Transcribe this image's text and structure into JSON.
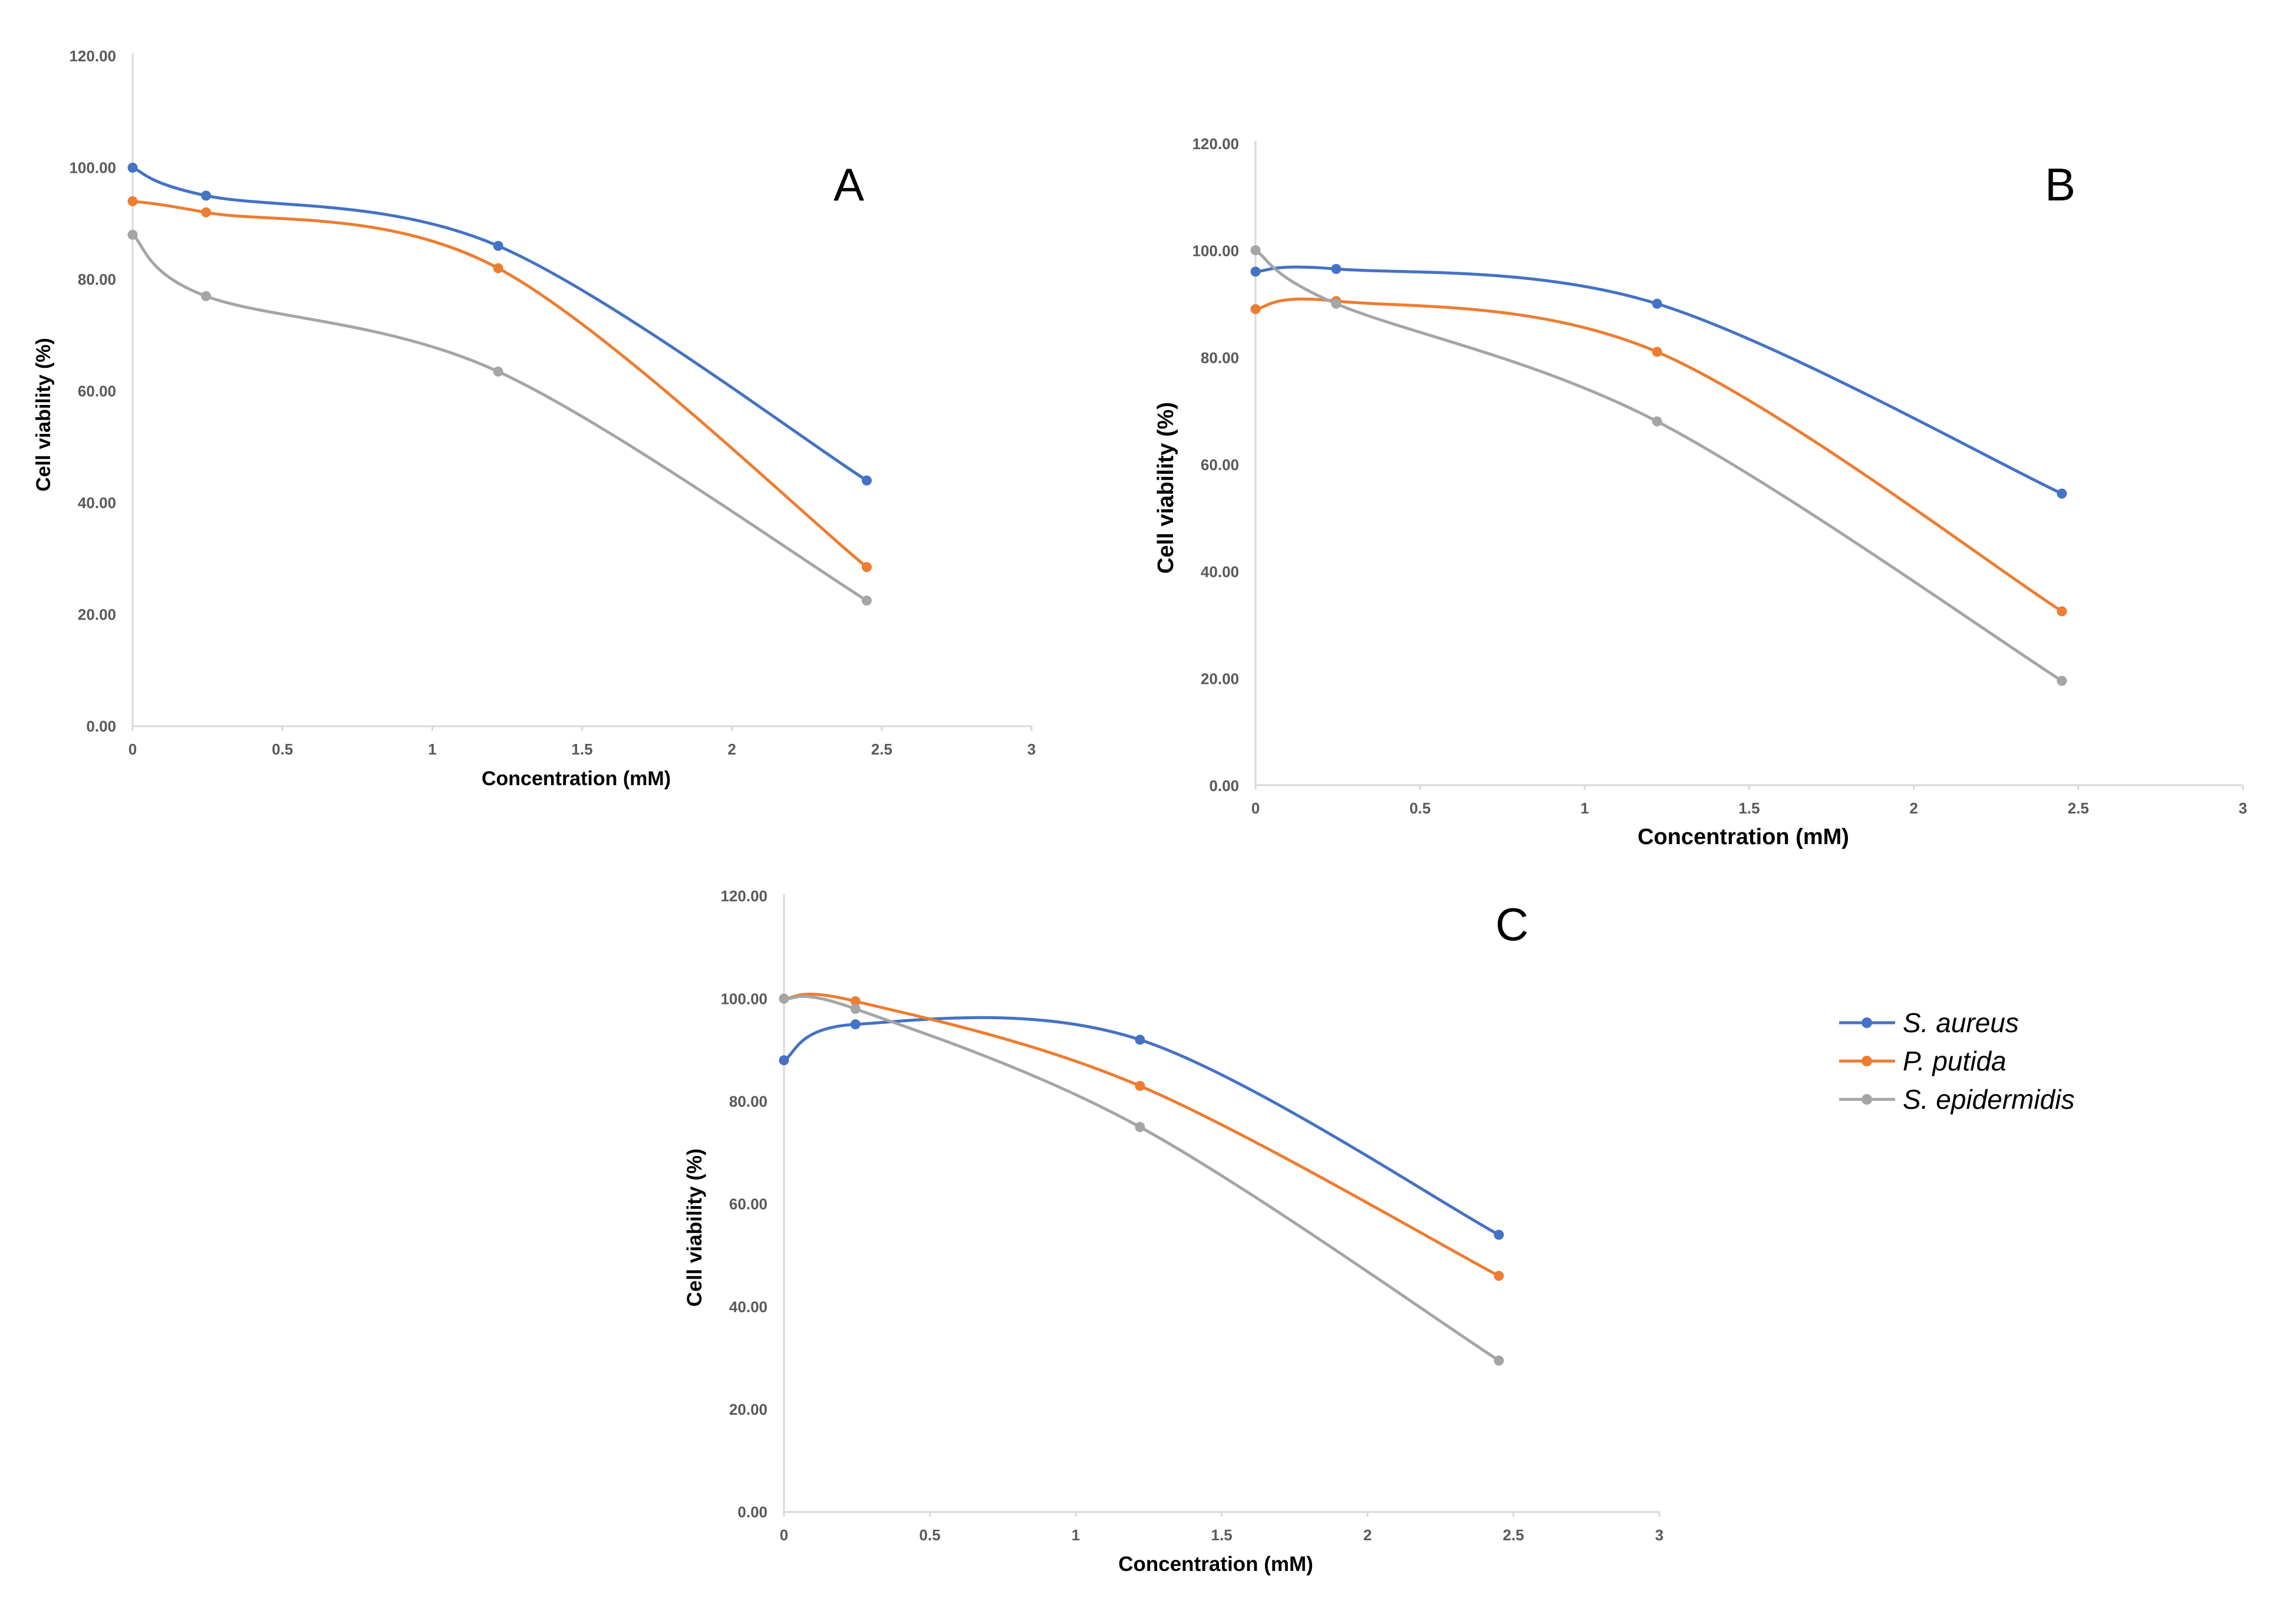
{
  "colors": {
    "s_aureus": "#4472C4",
    "p_putida": "#ED7D31",
    "s_epidermidis": "#A5A5A5",
    "axis": "#D9D9D9",
    "tick_text": "#595959"
  },
  "legend": {
    "items": [
      {
        "key": "s_aureus",
        "label": "S. aureus"
      },
      {
        "key": "p_putida",
        "label": "P. putida"
      },
      {
        "key": "s_epidermidis",
        "label": "S. epidermidis"
      }
    ]
  },
  "chart_data": [
    {
      "id": "A",
      "type": "line",
      "title": "A",
      "xlabel": "Concentration (mM)",
      "ylabel": "Cell viability (%)",
      "xlim": [
        0,
        3
      ],
      "ylim": [
        0,
        120
      ],
      "xticks": [
        0,
        0.5,
        1,
        1.5,
        2,
        2.5,
        3
      ],
      "xtick_labels": [
        "0",
        "0.5",
        "1",
        "1.5",
        "2",
        "2.5",
        "3"
      ],
      "yticks": [
        0,
        20,
        40,
        60,
        80,
        100,
        120
      ],
      "ytick_labels": [
        "0.00",
        "20.00",
        "40.00",
        "60.00",
        "80.00",
        "100.00",
        "120.00"
      ],
      "x": [
        0,
        0.245,
        1.22,
        2.45
      ],
      "series": [
        {
          "key": "s_aureus",
          "name": "S. aureus",
          "values": [
            100,
            95,
            86,
            44
          ]
        },
        {
          "key": "p_putida",
          "name": "P. putida",
          "values": [
            94,
            92,
            82,
            28.5
          ]
        },
        {
          "key": "s_epidermidis",
          "name": "S. epidermidis",
          "values": [
            88,
            77,
            63.5,
            22.5
          ]
        }
      ]
    },
    {
      "id": "B",
      "type": "line",
      "title": "B",
      "xlabel": "Concentration (mM)",
      "ylabel": "Cell viability (%)",
      "xlim": [
        0,
        3
      ],
      "ylim": [
        0,
        120
      ],
      "xticks": [
        0,
        0.5,
        1,
        1.5,
        2,
        2.5,
        3
      ],
      "xtick_labels": [
        "0",
        "0.5",
        "1",
        "1.5",
        "2",
        "2.5",
        "3"
      ],
      "yticks": [
        0,
        20,
        40,
        60,
        80,
        100,
        120
      ],
      "ytick_labels": [
        "0.00",
        "20.00",
        "40.00",
        "60.00",
        "80.00",
        "100.00",
        "120.00"
      ],
      "x": [
        0,
        0.245,
        1.22,
        2.45
      ],
      "series": [
        {
          "key": "s_aureus",
          "name": "S. aureus",
          "values": [
            96,
            96.5,
            90,
            54.5
          ]
        },
        {
          "key": "p_putida",
          "name": "P. putida",
          "values": [
            89,
            90.5,
            81,
            32.5
          ]
        },
        {
          "key": "s_epidermidis",
          "name": "S. epidermidis",
          "values": [
            100,
            90,
            68,
            19.5
          ]
        }
      ]
    },
    {
      "id": "C",
      "type": "line",
      "title": "C",
      "xlabel": "Concentration (mM)",
      "ylabel": "Cell viability (%)",
      "xlim": [
        0,
        3
      ],
      "ylim": [
        0,
        120
      ],
      "xticks": [
        0,
        0.5,
        1,
        1.5,
        2,
        2.5,
        3
      ],
      "xtick_labels": [
        "0",
        "0.5",
        "1",
        "1.5",
        "2",
        "2.5",
        "3"
      ],
      "yticks": [
        0,
        20,
        40,
        60,
        80,
        100,
        120
      ],
      "ytick_labels": [
        "0.00",
        "20.00",
        "40.00",
        "60.00",
        "80.00",
        "100.00",
        "120.00"
      ],
      "x": [
        0,
        0.245,
        1.22,
        2.45
      ],
      "series": [
        {
          "key": "s_aureus",
          "name": "S. aureus",
          "values": [
            88,
            95,
            92,
            54
          ]
        },
        {
          "key": "p_putida",
          "name": "P. putida",
          "values": [
            100,
            99.5,
            83,
            46
          ]
        },
        {
          "key": "s_epidermidis",
          "name": "S. epidermidis",
          "values": [
            100,
            98,
            75,
            29.5
          ]
        }
      ]
    }
  ]
}
